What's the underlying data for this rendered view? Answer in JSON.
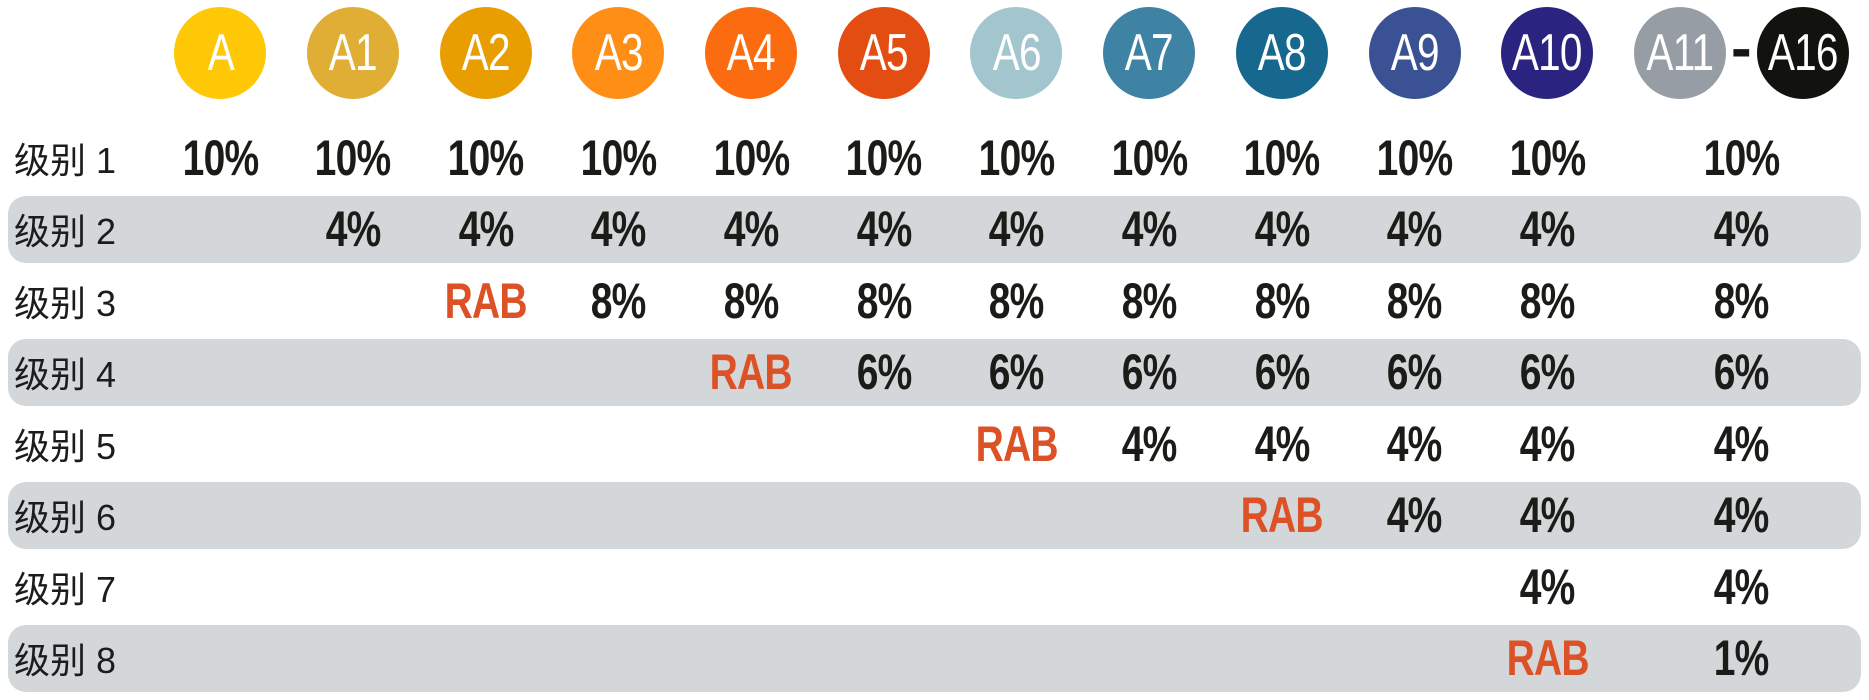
{
  "colors": {
    "stripe": "#D4D7D9",
    "rab": "#DC5226",
    "ink": "#1B1B18"
  },
  "header": {
    "circles": [
      {
        "label": "A",
        "color": "#FFC807"
      },
      {
        "label": "A1",
        "color": "#E0AE35"
      },
      {
        "label": "A2",
        "color": "#E89E00"
      },
      {
        "label": "A3",
        "color": "#FF8E16"
      },
      {
        "label": "A4",
        "color": "#FA6C0F"
      },
      {
        "label": "A5",
        "color": "#E44D12"
      },
      {
        "label": "A6",
        "color": "#A2C5CE"
      },
      {
        "label": "A7",
        "color": "#3E82A4"
      },
      {
        "label": "A8",
        "color": "#16688F"
      },
      {
        "label": "A9",
        "color": "#3A5194"
      },
      {
        "label": "A10",
        "color": "#2A2380"
      }
    ],
    "group": {
      "left": {
        "label": "A11",
        "color": "#969DA4"
      },
      "separator": "-",
      "right": {
        "label": "A16",
        "color": "#12120E"
      }
    }
  },
  "chart_data": {
    "type": "table",
    "columns": [
      "A",
      "A1",
      "A2",
      "A3",
      "A4",
      "A5",
      "A6",
      "A7",
      "A8",
      "A9",
      "A10",
      "A11-A16"
    ],
    "rows": [
      {
        "label": "级别 1",
        "values": [
          "10%",
          "10%",
          "10%",
          "10%",
          "10%",
          "10%",
          "10%",
          "10%",
          "10%",
          "10%",
          "10%",
          "10%"
        ]
      },
      {
        "label": "级别 2",
        "values": [
          "",
          "4%",
          "4%",
          "4%",
          "4%",
          "4%",
          "4%",
          "4%",
          "4%",
          "4%",
          "4%",
          "4%"
        ]
      },
      {
        "label": "级别 3",
        "values": [
          "",
          "",
          "RAB",
          "8%",
          "8%",
          "8%",
          "8%",
          "8%",
          "8%",
          "8%",
          "8%",
          "8%"
        ]
      },
      {
        "label": "级别 4",
        "values": [
          "",
          "",
          "",
          "",
          "RAB",
          "6%",
          "6%",
          "6%",
          "6%",
          "6%",
          "6%",
          "6%"
        ]
      },
      {
        "label": "级别 5",
        "values": [
          "",
          "",
          "",
          "",
          "",
          "",
          "RAB",
          "4%",
          "4%",
          "4%",
          "4%",
          "4%"
        ]
      },
      {
        "label": "级别 6",
        "values": [
          "",
          "",
          "",
          "",
          "",
          "",
          "",
          "",
          "RAB",
          "4%",
          "4%",
          "4%"
        ]
      },
      {
        "label": "级别 7",
        "values": [
          "",
          "",
          "",
          "",
          "",
          "",
          "",
          "",
          "",
          "",
          "4%",
          "4%"
        ]
      },
      {
        "label": "级别 8",
        "values": [
          "",
          "",
          "",
          "",
          "",
          "",
          "",
          "",
          "",
          "",
          "RAB",
          "1%"
        ]
      }
    ]
  }
}
